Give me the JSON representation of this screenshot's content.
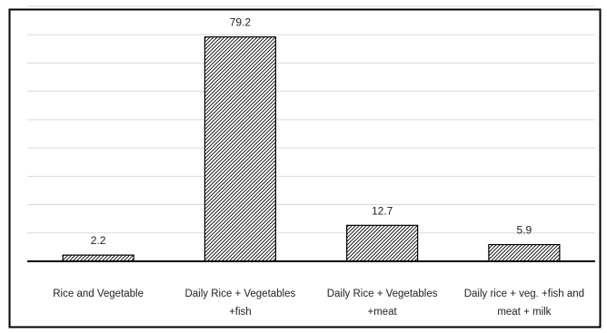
{
  "chart_data": {
    "type": "bar",
    "title": "",
    "xlabel": "",
    "ylabel": "",
    "categories": [
      [
        "Rice and Vegetable"
      ],
      [
        "Daily Rice + Vegetables",
        "+fish"
      ],
      [
        "Daily Rice + Vegetables",
        "+meat"
      ],
      [
        "Daily rice + veg. +fish and",
        "meat + milk"
      ]
    ],
    "values": [
      2.2,
      79.2,
      12.7,
      5.9
    ],
    "data_labels": [
      "2.2",
      "79.2",
      "12.7",
      "5.9"
    ],
    "ylim": [
      0,
      90
    ],
    "y_axis_visible": false,
    "grid": true,
    "legend": "none",
    "bar_fill": "diagonal-hatch",
    "colors": {
      "bar_stroke": "#000000",
      "hatch": "#000000",
      "grid": "#d9d9d9",
      "axis": "#000000",
      "border": "#000000",
      "text": "#222222"
    }
  }
}
